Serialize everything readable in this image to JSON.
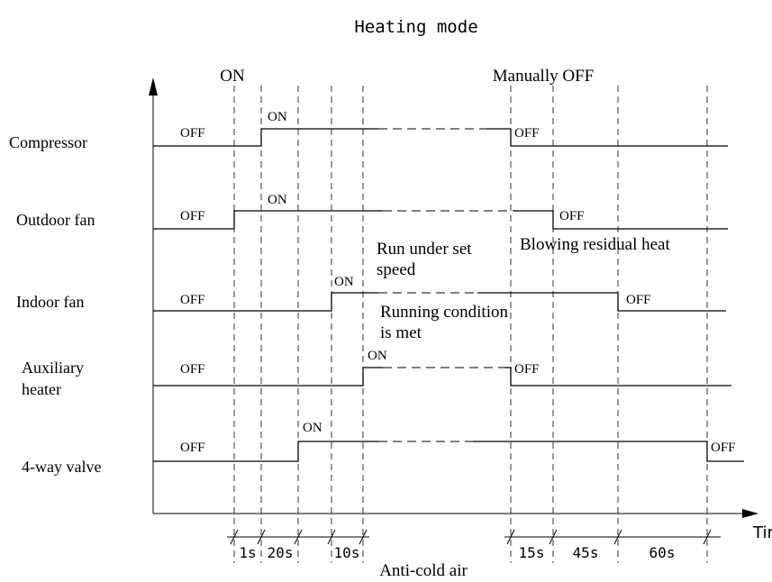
{
  "title": "Heating mode",
  "top_labels": [
    "ON",
    "Manually OFF"
  ],
  "rows": [
    {
      "name": [
        "Compressor"
      ],
      "states": [
        "OFF",
        "ON",
        "OFF"
      ]
    },
    {
      "name": [
        "Outdoor fan"
      ],
      "states": [
        "OFF",
        "ON",
        "OFF"
      ]
    },
    {
      "name": [
        "Indoor fan"
      ],
      "states": [
        "OFF",
        "ON",
        "OFF"
      ]
    },
    {
      "name": [
        "Auxiliary",
        "heater"
      ],
      "states": [
        "OFF",
        "ON",
        "OFF"
      ]
    },
    {
      "name": [
        "4-way valve"
      ],
      "states": [
        "OFF",
        "ON",
        "OFF"
      ]
    }
  ],
  "annotations": [
    [
      "Run under set",
      "speed"
    ],
    [
      "Blowing residual heat"
    ],
    [
      "Running condition",
      "is met"
    ]
  ],
  "intervals": [
    "1s",
    "20s",
    "10s",
    "15s",
    "45s",
    "60s"
  ],
  "axis_label": "Time",
  "footnote": "Anti-cold air"
}
